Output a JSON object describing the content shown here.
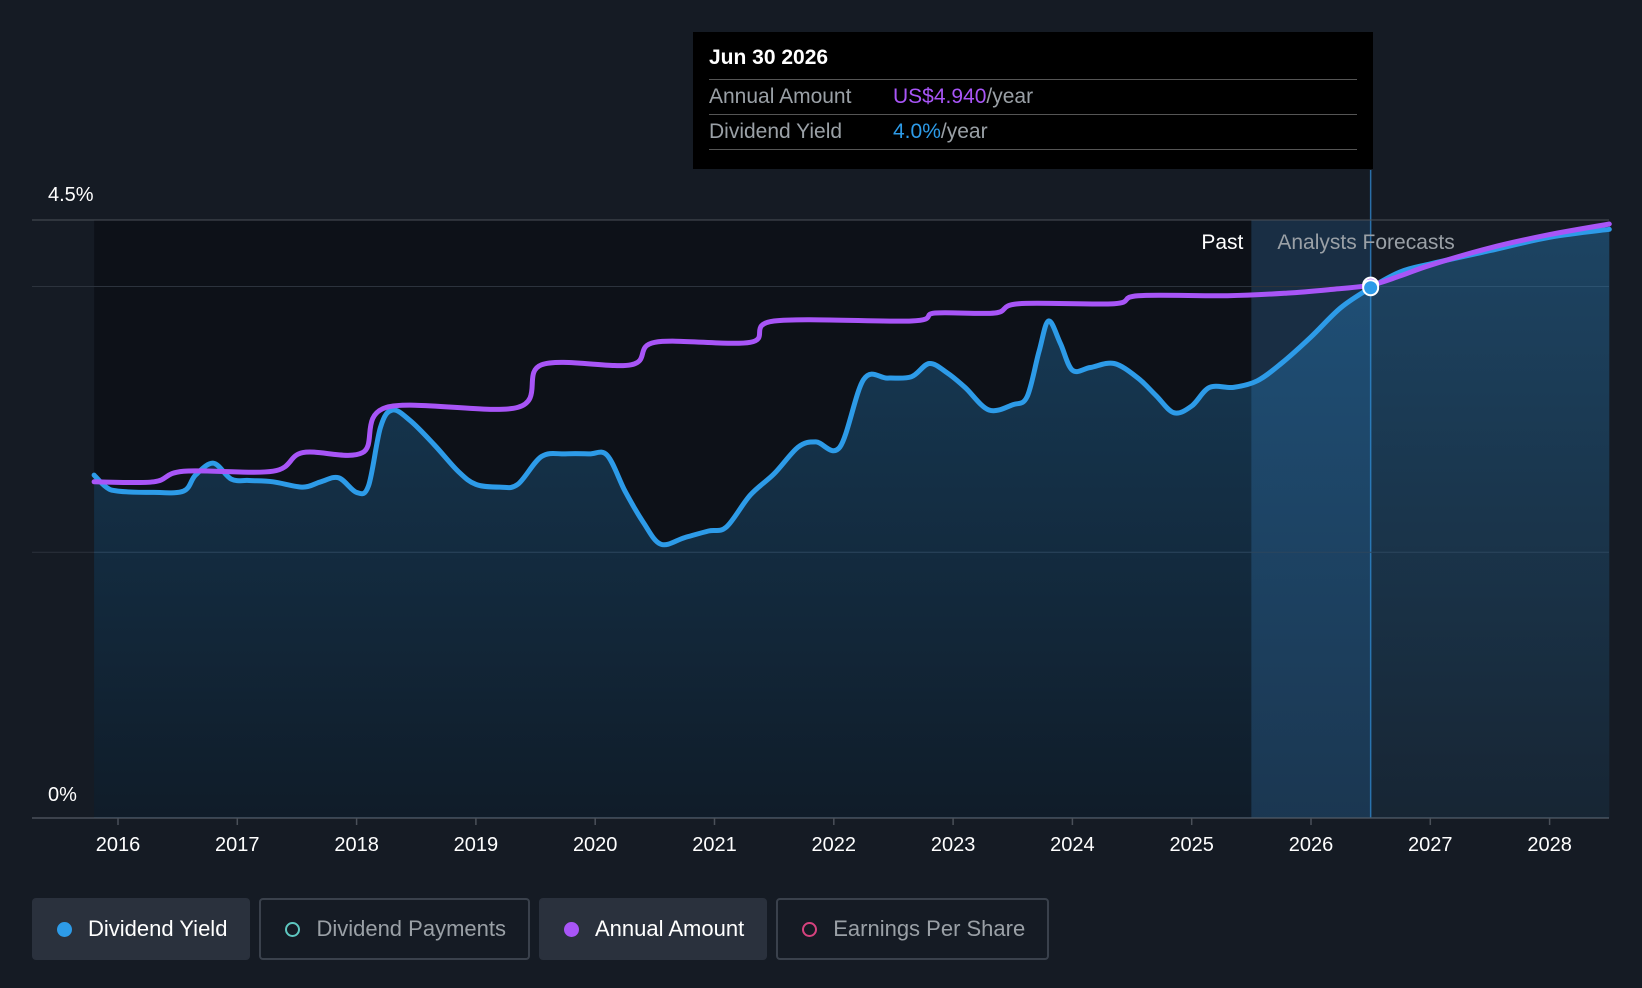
{
  "tooltip": {
    "date": "Jun 30 2026",
    "rows": [
      {
        "label": "Annual Amount",
        "value": "US$4.940",
        "unit": "/year"
      },
      {
        "label": "Dividend Yield",
        "value": "4.0%",
        "unit": "/year"
      }
    ]
  },
  "regions": {
    "past_label": "Past",
    "forecast_label": "Analysts Forecasts"
  },
  "legend": [
    {
      "label": "Dividend Yield",
      "active": true,
      "color": "#2d9be8",
      "filled": true
    },
    {
      "label": "Dividend Payments",
      "active": false,
      "color": "#5ec7c0",
      "filled": false
    },
    {
      "label": "Annual Amount",
      "active": true,
      "color": "#a855f7",
      "filled": true
    },
    {
      "label": "Earnings Per Share",
      "active": false,
      "color": "#d6427e",
      "filled": false
    }
  ],
  "colors": {
    "background": "#151b24",
    "dividend_yield": "#2d9be8",
    "annual_amount": "#a855f7",
    "past_region": "#0d1118"
  },
  "chart_data": {
    "type": "line",
    "y_tick_labels": [
      "4.5%",
      "0%"
    ],
    "ylim": [
      0,
      4.5
    ],
    "xlim": [
      2015.8,
      2028.5
    ],
    "x_tick_labels": [
      "2016",
      "2017",
      "2018",
      "2019",
      "2020",
      "2021",
      "2022",
      "2023",
      "2024",
      "2025",
      "2026",
      "2027",
      "2028"
    ],
    "x_ticks": [
      2016,
      2017,
      2018,
      2019,
      2020,
      2021,
      2022,
      2023,
      2024,
      2025,
      2026,
      2027,
      2028
    ],
    "forecast_start": 2025.5,
    "highlight_x": 2026.5,
    "series": [
      {
        "name": "Dividend Yield",
        "color": "#2d9be8",
        "fill": true,
        "points": [
          [
            2015.8,
            2.58
          ],
          [
            2015.9,
            2.49
          ],
          [
            2016.0,
            2.46
          ],
          [
            2016.3,
            2.45
          ],
          [
            2016.55,
            2.46
          ],
          [
            2016.65,
            2.58
          ],
          [
            2016.8,
            2.67
          ],
          [
            2016.95,
            2.55
          ],
          [
            2017.1,
            2.54
          ],
          [
            2017.3,
            2.53
          ],
          [
            2017.55,
            2.49
          ],
          [
            2017.7,
            2.53
          ],
          [
            2017.85,
            2.56
          ],
          [
            2018.0,
            2.45
          ],
          [
            2018.1,
            2.5
          ],
          [
            2018.2,
            2.94
          ],
          [
            2018.3,
            3.07
          ],
          [
            2018.45,
            2.99
          ],
          [
            2018.65,
            2.81
          ],
          [
            2018.85,
            2.61
          ],
          [
            2019.0,
            2.51
          ],
          [
            2019.2,
            2.49
          ],
          [
            2019.35,
            2.51
          ],
          [
            2019.55,
            2.72
          ],
          [
            2019.75,
            2.74
          ],
          [
            2019.95,
            2.74
          ],
          [
            2020.1,
            2.73
          ],
          [
            2020.25,
            2.46
          ],
          [
            2020.4,
            2.23
          ],
          [
            2020.55,
            2.06
          ],
          [
            2020.75,
            2.11
          ],
          [
            2020.95,
            2.16
          ],
          [
            2021.1,
            2.19
          ],
          [
            2021.3,
            2.43
          ],
          [
            2021.5,
            2.59
          ],
          [
            2021.7,
            2.79
          ],
          [
            2021.85,
            2.83
          ],
          [
            2022.05,
            2.79
          ],
          [
            2022.25,
            3.3
          ],
          [
            2022.45,
            3.31
          ],
          [
            2022.65,
            3.32
          ],
          [
            2022.8,
            3.42
          ],
          [
            2022.95,
            3.35
          ],
          [
            2023.1,
            3.24
          ],
          [
            2023.3,
            3.07
          ],
          [
            2023.5,
            3.11
          ],
          [
            2023.62,
            3.17
          ],
          [
            2023.72,
            3.51
          ],
          [
            2023.8,
            3.74
          ],
          [
            2023.9,
            3.57
          ],
          [
            2024.0,
            3.37
          ],
          [
            2024.15,
            3.39
          ],
          [
            2024.35,
            3.42
          ],
          [
            2024.55,
            3.31
          ],
          [
            2024.7,
            3.18
          ],
          [
            2024.85,
            3.05
          ],
          [
            2025.0,
            3.1
          ],
          [
            2025.15,
            3.24
          ],
          [
            2025.35,
            3.24
          ],
          [
            2025.55,
            3.29
          ],
          [
            2025.75,
            3.42
          ],
          [
            2026.0,
            3.62
          ],
          [
            2026.25,
            3.84
          ],
          [
            2026.5,
            3.99
          ],
          [
            2026.75,
            4.11
          ],
          [
            2027.0,
            4.17
          ],
          [
            2027.5,
            4.27
          ],
          [
            2028.0,
            4.37
          ],
          [
            2028.5,
            4.43
          ]
        ]
      },
      {
        "name": "Annual Amount",
        "color": "#a855f7",
        "fill": false,
        "points": [
          [
            2015.8,
            2.53
          ],
          [
            2016.3,
            2.53
          ],
          [
            2016.55,
            2.61
          ],
          [
            2017.3,
            2.61
          ],
          [
            2017.55,
            2.75
          ],
          [
            2018.05,
            2.75
          ],
          [
            2018.25,
            3.09
          ],
          [
            2019.35,
            3.09
          ],
          [
            2019.55,
            3.41
          ],
          [
            2020.3,
            3.41
          ],
          [
            2020.5,
            3.58
          ],
          [
            2021.3,
            3.58
          ],
          [
            2021.5,
            3.74
          ],
          [
            2022.65,
            3.74
          ],
          [
            2022.85,
            3.8
          ],
          [
            2023.35,
            3.8
          ],
          [
            2023.55,
            3.87
          ],
          [
            2024.35,
            3.87
          ],
          [
            2024.55,
            3.93
          ],
          [
            2025.3,
            3.93
          ],
          [
            2025.8,
            3.95
          ],
          [
            2026.2,
            3.98
          ],
          [
            2026.5,
            4.01
          ],
          [
            2026.75,
            4.08
          ],
          [
            2027.0,
            4.16
          ],
          [
            2027.5,
            4.29
          ],
          [
            2028.0,
            4.39
          ],
          [
            2028.5,
            4.47
          ]
        ]
      }
    ]
  }
}
